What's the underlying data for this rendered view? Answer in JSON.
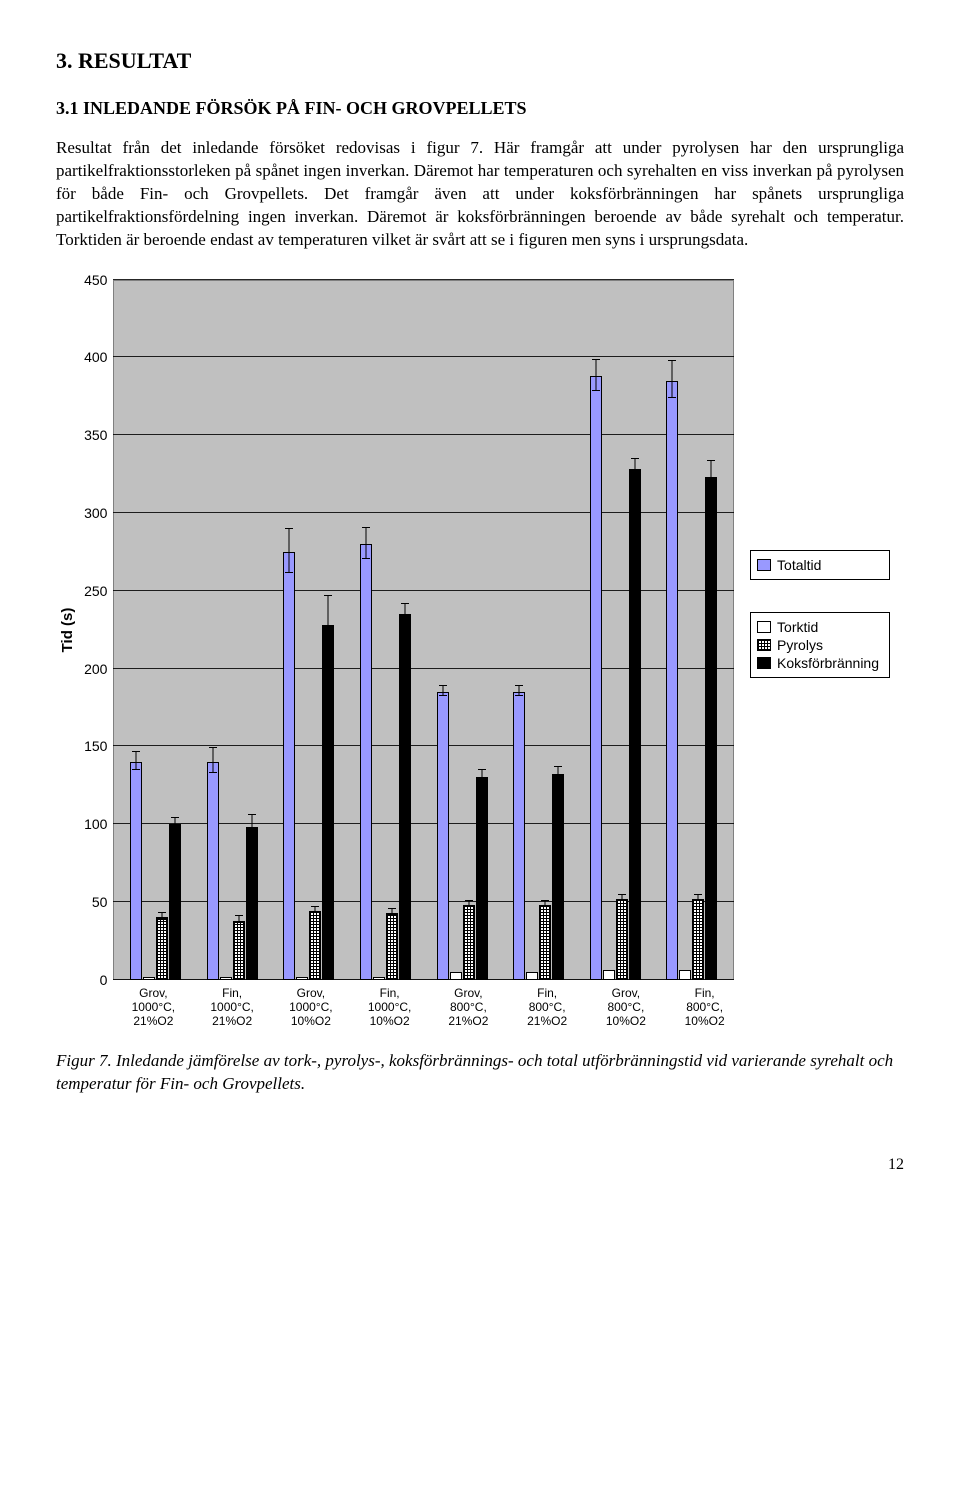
{
  "section": {
    "title": "3. RESULTAT"
  },
  "subsection": {
    "title": "3.1 INLEDANDE FÖRSÖK PÅ FIN- OCH GROVPELLETS"
  },
  "paragraphs": {
    "p1": "Resultat från det inledande försöket redovisas i figur 7. Här framgår att under pyrolysen har den ursprungliga partikelfraktionsstorleken på spånet ingen inverkan. Däremot har temperaturen och syrehalten en viss inverkan på pyrolysen för både Fin- och Grovpellets. Det framgår även att under koksförbränningen har spånets ursprungliga partikelfraktionsfördelning ingen inverkan. Däremot är koksförbränningen beroende av både syrehalt och temperatur. Torktiden är beroende endast av temperaturen vilket är svårt att se i figuren men syns i ursprungsdata."
  },
  "chart": {
    "type": "bar",
    "y_label": "Tid (s)",
    "ylim": [
      0,
      450
    ],
    "ytick_step": 50,
    "yticks": [
      0,
      50,
      100,
      150,
      200,
      250,
      300,
      350,
      400,
      450
    ],
    "background_color": "#c0c0c0",
    "grid_color": "#000000",
    "label_font": "Arial",
    "label_fontsize": 14,
    "series": [
      {
        "name": "Totaltid",
        "color": "#9999ff",
        "pattern": "solid"
      },
      {
        "name": "Torktid",
        "color": "#ffffff",
        "pattern": "solid"
      },
      {
        "name": "Pyrolys",
        "color": "#ffffff",
        "pattern": "hatch"
      },
      {
        "name": "Koksförbränning",
        "color": "#000000",
        "pattern": "solid"
      }
    ],
    "categories": [
      "Grov,\n1000°C,\n21%O2",
      "Fin,\n1000°C,\n21%O2",
      "Grov,\n1000°C,\n10%O2",
      "Fin,\n1000°C,\n10%O2",
      "Grov,\n800°C,\n21%O2",
      "Fin,\n800°C,\n21%O2",
      "Grov,\n800°C,\n10%O2",
      "Fin,\n800°C,\n10%O2"
    ],
    "values": {
      "Totaltid": [
        140,
        140,
        275,
        280,
        185,
        185,
        388,
        385
      ],
      "Torktid": [
        2,
        2,
        2,
        2,
        5,
        5,
        6,
        6
      ],
      "Pyrolys": [
        40,
        38,
        44,
        43,
        48,
        48,
        52,
        52
      ],
      "Koksforbranning": [
        100,
        98,
        228,
        235,
        130,
        132,
        328,
        323
      ]
    },
    "errors": {
      "Totaltid": [
        6,
        8,
        14,
        10,
        3,
        3,
        10,
        12
      ],
      "Torktid": [
        0,
        0,
        0,
        0,
        0,
        0,
        0,
        0
      ],
      "Pyrolys": [
        2,
        2,
        2,
        2,
        2,
        2,
        2,
        2
      ],
      "Koksforbranning": [
        3,
        7,
        18,
        6,
        4,
        4,
        6,
        10
      ]
    },
    "legend_groups": [
      [
        "Totaltid"
      ],
      [
        "Torktid",
        "Pyrolys",
        "Koksförbränning"
      ]
    ]
  },
  "caption": "Figur 7. Inledande jämförelse av tork-, pyrolys-, koksförbrännings- och total utförbränningstid vid varierande syrehalt och temperatur för Fin- och Grovpellets.",
  "page_number": "12"
}
